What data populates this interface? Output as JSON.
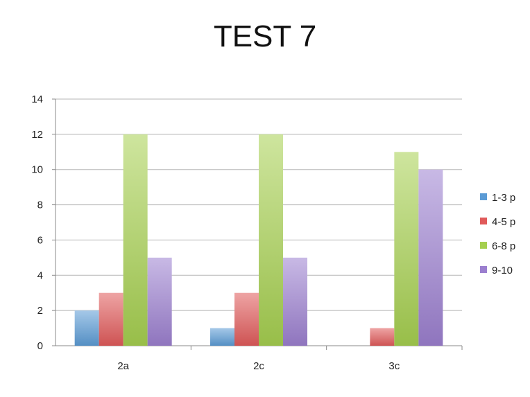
{
  "chart_data": {
    "type": "bar",
    "title": "TEST 7",
    "categories": [
      "2a",
      "2c",
      "3c"
    ],
    "series": [
      {
        "name": "1-3 p",
        "values": [
          2,
          1,
          0
        ],
        "color": "#5b9bd5"
      },
      {
        "name": "4-5 p",
        "values": [
          3,
          3,
          1
        ],
        "color": "#e05a5a"
      },
      {
        "name": "6-8 p",
        "values": [
          12,
          12,
          11
        ],
        "color": "#a5cf4f"
      },
      {
        "name": "9-10",
        "values": [
          5,
          5,
          10
        ],
        "color": "#9b7fcf"
      }
    ],
    "xlabel": "",
    "ylabel": "",
    "ylim": [
      0,
      14
    ],
    "yticks": [
      0,
      2,
      4,
      6,
      8,
      10,
      12,
      14
    ],
    "grid": true,
    "legend_position": "right"
  }
}
